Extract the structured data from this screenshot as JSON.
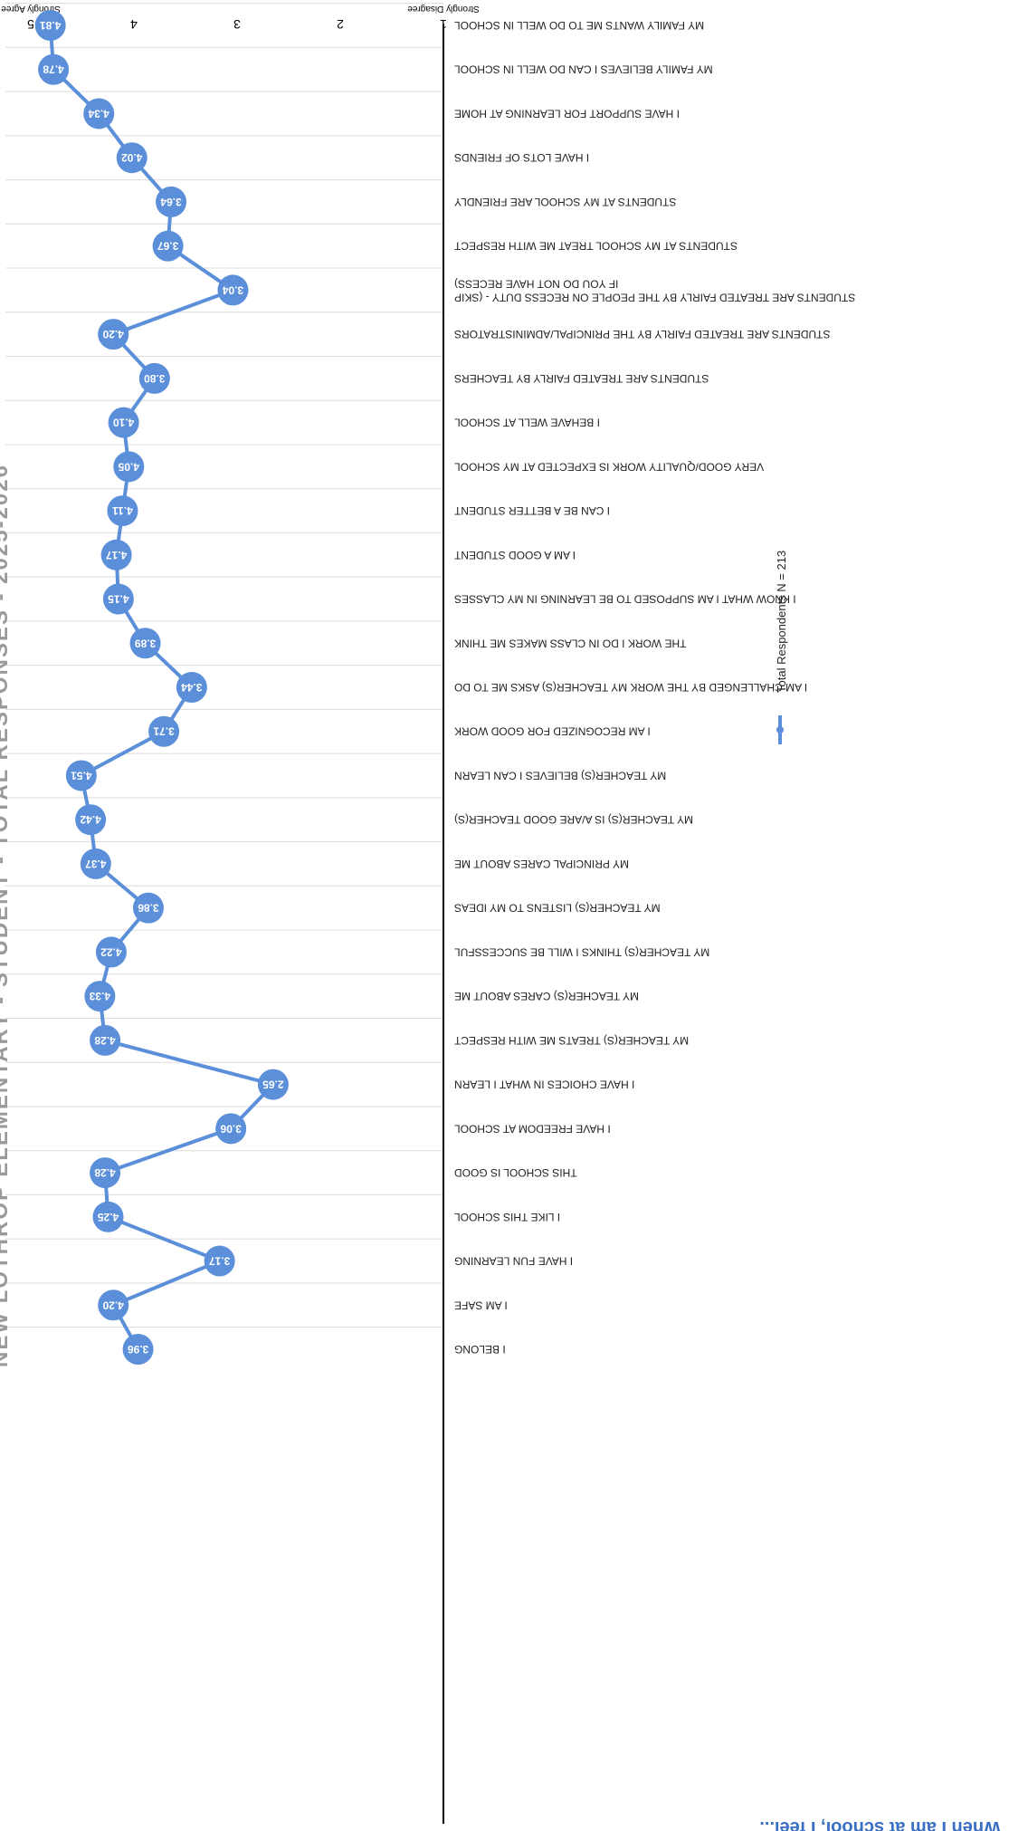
{
  "colors": {
    "series": "#5b8fd9",
    "label_text": "#ffffff",
    "title": "#9a9a9a",
    "subtitle": "#3a6fc4",
    "axis": "#000000",
    "grid": "#dcdcdc",
    "category_text": "#222222"
  },
  "chart_data": {
    "type": "line",
    "title": "NEW LOTHROP ELEMENTARY - STUDENT - TOTAL RESPONSES - 2025-2026",
    "subtitle": "When I am at school, I feel...",
    "xlabel": "",
    "ylabel": "",
    "ylim": [
      1,
      5
    ],
    "y_ticks": [
      "1",
      "2",
      "3",
      "4",
      "5"
    ],
    "y_tick_captions": {
      "low": "Strongly Disagree",
      "high": "Strongly Agree"
    },
    "grid": true,
    "legend": {
      "position": "bottom-right",
      "label": "Total Respondents N = 213"
    },
    "orientation": "rotated-180",
    "categories": [
      "I BELONG",
      "I AM SAFE",
      "I HAVE FUN LEARNING",
      "I LIKE THIS SCHOOL",
      "THIS SCHOOL IS GOOD",
      "I HAVE FREEDOM AT SCHOOL",
      "I HAVE CHOICES IN WHAT I LEARN",
      "MY TEACHER(S) TREATS ME WITH RESPECT",
      "MY TEACHER(S) CARES ABOUT ME",
      "MY TEACHER(S) THINKS I WILL BE SUCCESSFUL",
      "MY TEACHER(S) LISTENS TO MY IDEAS",
      "MY PRINCIPAL CARES ABOUT ME",
      "MY TEACHER(S) IS A/ARE GOOD TEACHER(S)",
      "MY TEACHER(S) BELIEVES I CAN LEARN",
      "I AM RECOGNIZED FOR GOOD WORK",
      "I AM CHALLENGED BY THE WORK MY TEACHER(S) ASKS ME TO DO",
      "THE WORK I DO IN CLASS MAKES ME THINK",
      "I KNOW WHAT I AM SUPPOSED TO BE LEARNING IN MY CLASSES",
      "I AM A GOOD STUDENT",
      "I CAN BE A BETTER STUDENT",
      "VERY GOOD/QUALITY WORK IS EXPECTED AT MY SCHOOL",
      "I BEHAVE WELL AT SCHOOL",
      "STUDENTS ARE TREATED FAIRLY BY TEACHERS",
      "STUDENTS ARE TREATED FAIRLY BY THE PRINCIPAL/ADMINISTRATORS",
      [
        "STUDENTS ARE TREATED FAIRLY BY THE PEOPLE ON RECESS DUTY - (SKIP",
        "IF YOU DO NOT HAVE RECESS)"
      ],
      "STUDENTS AT MY SCHOOL TREAT ME WITH RESPECT",
      "STUDENTS AT MY SCHOOL ARE FRIENDLY",
      "I HAVE LOTS OF FRIENDS",
      "I HAVE SUPPORT FOR LEARNING AT HOME",
      "MY FAMILY BELIEVES I CAN DO WELL IN SCHOOL",
      "MY FAMILY WANTS ME TO DO WELL IN SCHOOL"
    ],
    "series": [
      {
        "name": "Total Respondents N = 213",
        "values": [
          3.96,
          4.2,
          3.17,
          4.25,
          4.28,
          3.06,
          2.65,
          4.28,
          4.33,
          4.22,
          3.86,
          4.37,
          4.42,
          4.51,
          3.71,
          3.44,
          3.89,
          4.15,
          4.17,
          4.11,
          4.05,
          4.1,
          3.8,
          4.2,
          3.04,
          3.67,
          3.64,
          4.02,
          4.34,
          4.78,
          4.81
        ]
      }
    ]
  }
}
